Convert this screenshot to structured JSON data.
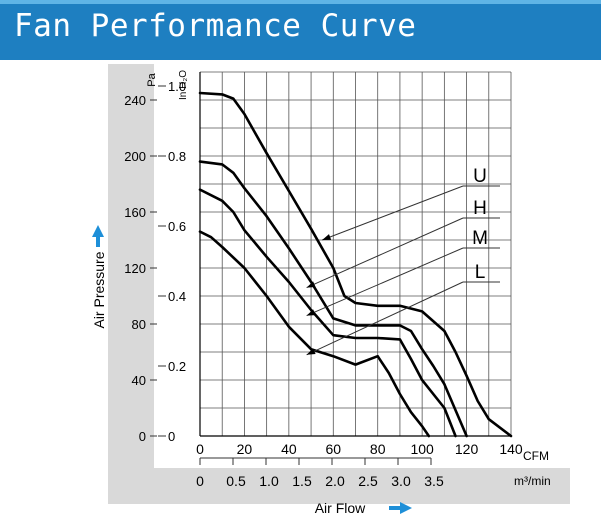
{
  "header": {
    "title": "Fan Performance Curve"
  },
  "colors": {
    "header_bg": "#1e7fc1",
    "header_accent": "#5fb4e6",
    "panel": "#d9d9d9",
    "arrow": "#1e8fd8",
    "curve": "#000000"
  },
  "chart_data": {
    "type": "line",
    "title": "Fan Performance Curve",
    "xlabel": "Air Flow",
    "ylabel": "Air Pressure",
    "x_unit_primary": "CFM",
    "x_unit_secondary": "m³/min",
    "y_unit_left": "Pa",
    "y_unit_right": "In H₂O",
    "xlim": [
      0,
      140
    ],
    "ylim": [
      0,
      260
    ],
    "x_ticks_cfm": [
      "0",
      "20",
      "40",
      "60",
      "80",
      "100",
      "120",
      "140"
    ],
    "x_ticks_m3": [
      "0",
      "0.5",
      "1.0",
      "1.5",
      "2.0",
      "2.5",
      "3.0",
      "3.5"
    ],
    "y_ticks_pa": [
      "0",
      "40",
      "80",
      "120",
      "160",
      "200",
      "240"
    ],
    "y_ticks_inh2o": [
      "0",
      "0.2",
      "0.4",
      "0.6",
      "0.8",
      "1.0"
    ],
    "grid": true,
    "series": [
      {
        "name": "U",
        "points": [
          [
            0,
            245
          ],
          [
            10,
            244
          ],
          [
            15,
            241
          ],
          [
            20,
            230
          ],
          [
            30,
            202
          ],
          [
            40,
            175
          ],
          [
            50,
            148
          ],
          [
            60,
            120
          ],
          [
            65,
            100
          ],
          [
            70,
            95
          ],
          [
            80,
            93
          ],
          [
            90,
            93
          ],
          [
            100,
            89
          ],
          [
            110,
            75
          ],
          [
            115,
            60
          ],
          [
            120,
            43
          ],
          [
            125,
            25
          ],
          [
            130,
            12
          ],
          [
            140,
            0
          ]
        ]
      },
      {
        "name": "H",
        "points": [
          [
            0,
            196
          ],
          [
            10,
            194
          ],
          [
            15,
            188
          ],
          [
            20,
            177
          ],
          [
            30,
            157
          ],
          [
            40,
            134
          ],
          [
            50,
            110
          ],
          [
            60,
            84
          ],
          [
            70,
            79
          ],
          [
            80,
            79
          ],
          [
            90,
            79
          ],
          [
            95,
            75
          ],
          [
            100,
            62
          ],
          [
            105,
            50
          ],
          [
            110,
            37
          ],
          [
            120,
            0
          ]
        ]
      },
      {
        "name": "M",
        "points": [
          [
            0,
            176
          ],
          [
            10,
            168
          ],
          [
            15,
            160
          ],
          [
            20,
            147
          ],
          [
            30,
            128
          ],
          [
            40,
            110
          ],
          [
            50,
            90
          ],
          [
            60,
            72
          ],
          [
            70,
            70
          ],
          [
            80,
            70
          ],
          [
            90,
            69
          ],
          [
            95,
            55
          ],
          [
            100,
            40
          ],
          [
            110,
            20
          ],
          [
            115,
            0
          ]
        ]
      },
      {
        "name": "L",
        "points": [
          [
            0,
            146
          ],
          [
            5,
            142
          ],
          [
            10,
            135
          ],
          [
            20,
            120
          ],
          [
            30,
            100
          ],
          [
            40,
            78
          ],
          [
            50,
            62
          ],
          [
            60,
            57
          ],
          [
            70,
            51
          ],
          [
            80,
            57
          ],
          [
            85,
            45
          ],
          [
            90,
            30
          ],
          [
            95,
            17
          ],
          [
            100,
            7
          ],
          [
            103,
            0
          ]
        ]
      }
    ],
    "annotations": [
      {
        "label": "U",
        "target": [
          55,
          140
        ]
      },
      {
        "label": "H",
        "target": [
          48,
          106
        ]
      },
      {
        "label": "M",
        "target": [
          48,
          86
        ]
      },
      {
        "label": "L",
        "target": [
          48,
          58
        ]
      }
    ]
  }
}
